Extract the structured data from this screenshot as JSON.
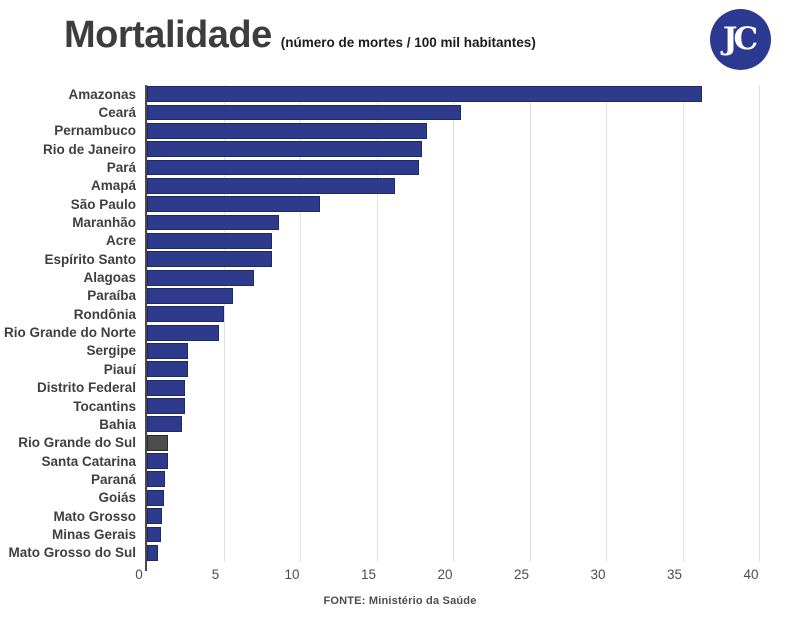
{
  "header": {
    "title": "Mortalidade",
    "subtitle": "(número de mortes / 100 mil habitantes)",
    "logo_text": "JC"
  },
  "footer": {
    "source": "FONTE: Ministério da Saúde"
  },
  "colors": {
    "bar": "#2e3a8c",
    "bar_border": "#1f2965",
    "highlight_bar": "#4d4d4d",
    "highlight_bar_border": "#2b2b2b",
    "gridline": "#e2e2e2",
    "axis": "#4a4a4a",
    "logo_background": "#2b3990",
    "title_text": "#3d3d3d"
  },
  "chart_data": {
    "type": "bar",
    "orientation": "horizontal",
    "title": "Mortalidade",
    "subtitle": "(número de mortes / 100 mil habitantes)",
    "xlabel": "",
    "ylabel": "",
    "grid": true,
    "xlim": [
      0,
      41
    ],
    "x_ticks": [
      0,
      5,
      10,
      15,
      20,
      25,
      30,
      35,
      40
    ],
    "categories": [
      "Amazonas",
      "Ceará",
      "Pernambuco",
      "Rio de Janeiro",
      "Pará",
      "Amapá",
      "São Paulo",
      "Maranhão",
      "Acre",
      "Espírito Santo",
      "Alagoas",
      "Paraíba",
      "Rondônia",
      "Rio Grande do Norte",
      "Sergipe",
      "Piauí",
      "Distrito Federal",
      "Tocantins",
      "Bahia",
      "Rio Grande do Sul",
      "Santa Catarina",
      "Paraná",
      "Goiás",
      "Mato Grosso",
      "Minas Gerais",
      "Mato Grosso do Sul"
    ],
    "values": [
      36.3,
      20.5,
      18.3,
      18.0,
      17.8,
      16.2,
      11.3,
      8.6,
      8.2,
      8.2,
      7.0,
      5.6,
      5.0,
      4.7,
      2.7,
      2.7,
      2.5,
      2.5,
      2.3,
      1.4,
      1.4,
      1.2,
      1.1,
      1.0,
      0.9,
      0.7
    ],
    "highlight": {
      "category": "Rio Grande do Sul",
      "color": "#4d4d4d"
    },
    "source": "FONTE: Ministério da Saúde"
  }
}
